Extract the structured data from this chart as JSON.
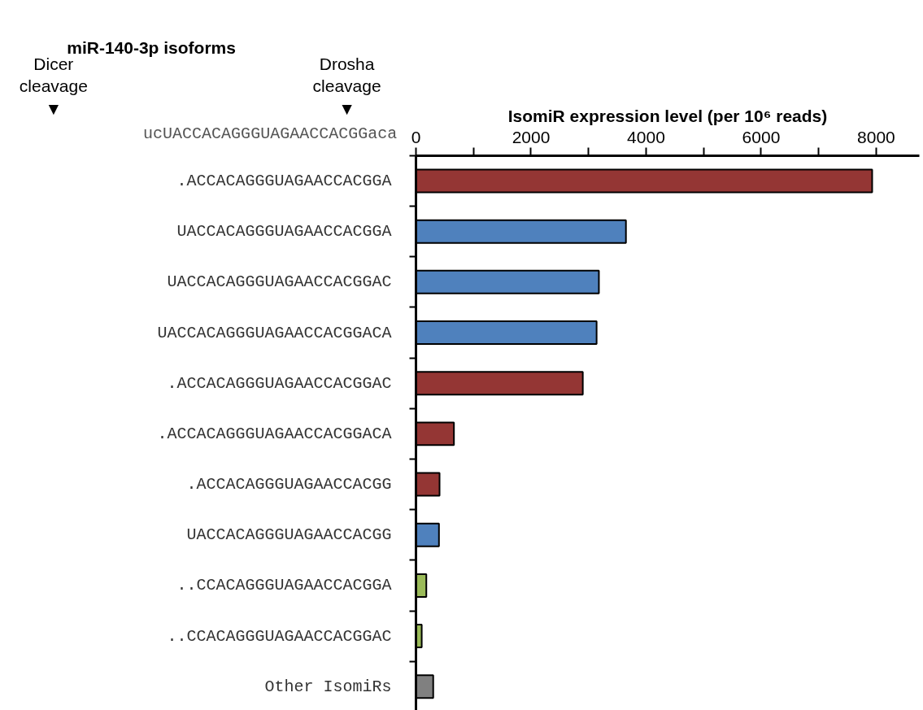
{
  "chart_data": {
    "type": "bar",
    "orientation": "horizontal",
    "title": "miR-140-3p isoforms",
    "xlabel": "IsomiR expression level (per 10⁶ reads)",
    "annotations": [
      "Dicer\ncleavage\n▼",
      "Drosha\ncleavage\n▼",
      "ucUACCACAGGGUAGAACCACGGaca"
    ],
    "categories": [
      ".ACCACAGGGUAGAACCACGGA",
      "UACCACAGGGUAGAACCACGGA",
      "UACCACAGGGUAGAACCACGGAC",
      "UACCACAGGGUAGAACCACGGACA",
      ".ACCACAGGGUAGAACCACGGAC",
      ".ACCACAGGGUAGAACCACGGACA",
      ".ACCACAGGGUAGAACCACGG",
      "UACCACAGGGUAGAACCACGG",
      "..CCACAGGGUAGAACCACGGA",
      "..CCACAGGGUAGAACCACGGAC",
      "Other IsomiRs"
    ],
    "values": [
      7930,
      3650,
      3180,
      3140,
      2900,
      660,
      410,
      400,
      180,
      100,
      300
    ],
    "colors": [
      "#943634",
      "#4f81bd",
      "#4f81bd",
      "#4f81bd",
      "#943634",
      "#943634",
      "#943634",
      "#4f81bd",
      "#9bbb59",
      "#9bbb59",
      "#808080"
    ],
    "xlim": [
      0,
      8750
    ],
    "xticks": [
      0,
      {
        "value": 1000,
        "label": null
      },
      2000,
      {
        "value": 3000,
        "label": null
      },
      4000,
      {
        "value": 5000,
        "label": null
      },
      6000,
      {
        "value": 7000,
        "label": null
      },
      8000
    ],
    "grid": false
  }
}
